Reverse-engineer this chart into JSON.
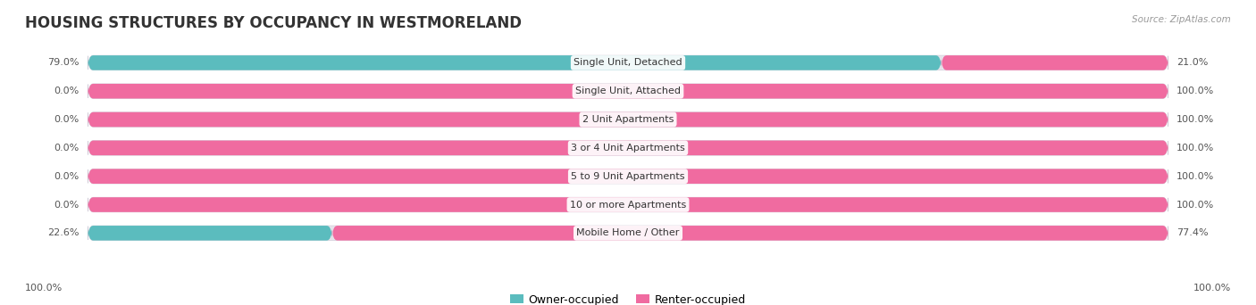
{
  "title": "HOUSING STRUCTURES BY OCCUPANCY IN WESTMORELAND",
  "source": "Source: ZipAtlas.com",
  "categories": [
    "Single Unit, Detached",
    "Single Unit, Attached",
    "2 Unit Apartments",
    "3 or 4 Unit Apartments",
    "5 to 9 Unit Apartments",
    "10 or more Apartments",
    "Mobile Home / Other"
  ],
  "owner_pct": [
    79.0,
    0.0,
    0.0,
    0.0,
    0.0,
    0.0,
    22.6
  ],
  "renter_pct": [
    21.0,
    100.0,
    100.0,
    100.0,
    100.0,
    100.0,
    77.4
  ],
  "owner_color": "#5bbcbe",
  "renter_color": "#f06ba0",
  "bar_bg_color": "#e8e5ec",
  "title_fontsize": 12,
  "label_fontsize": 8,
  "pct_fontsize": 8,
  "legend_fontsize": 9,
  "figsize": [
    14.06,
    3.42
  ],
  "dpi": 100
}
